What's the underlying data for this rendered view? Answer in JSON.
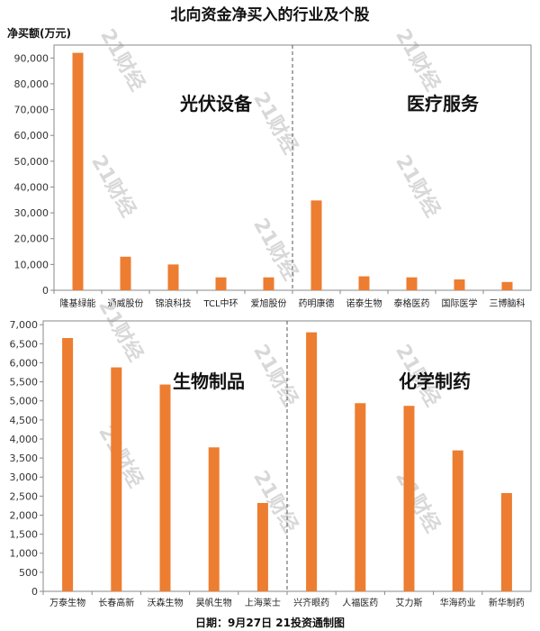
{
  "header": {
    "title": "北向资金净买入的行业及个股",
    "ylabel": "净买额(万元)"
  },
  "footer": {
    "text": "日期：9月27日  21投资通制图"
  },
  "watermark": "21财经",
  "colors": {
    "bar": "#ED7D31",
    "axis": "#888888",
    "divider": "#555555"
  },
  "chart_data": [
    {
      "type": "bar",
      "ylim": [
        0,
        95000
      ],
      "yticks": [
        0,
        10000,
        20000,
        30000,
        40000,
        50000,
        60000,
        70000,
        80000,
        90000
      ],
      "ytick_labels": [
        "0",
        "10,000",
        "20,000",
        "30,000",
        "40,000",
        "50,000",
        "60,000",
        "70,000",
        "80,000",
        "90,000"
      ],
      "groups": [
        {
          "label": "光伏设备",
          "categories": [
            "隆基绿能",
            "通威股份",
            "锦浪科技",
            "TCL中环",
            "爱旭股份"
          ],
          "values": [
            92000,
            13000,
            10000,
            5000,
            5000
          ]
        },
        {
          "label": "医疗服务",
          "categories": [
            "药明康德",
            "诺泰生物",
            "泰格医药",
            "国际医学",
            "三博脑科"
          ],
          "values": [
            34800,
            5400,
            5000,
            4200,
            3200
          ]
        }
      ]
    },
    {
      "type": "bar",
      "ylim": [
        0,
        7100
      ],
      "yticks": [
        0,
        500,
        1000,
        1500,
        2000,
        2500,
        3000,
        3500,
        4000,
        4500,
        5000,
        5500,
        6000,
        6500,
        7000
      ],
      "ytick_labels": [
        "0",
        "500",
        "1,000",
        "1,500",
        "2,000",
        "2,500",
        "3,000",
        "3,500",
        "4,000",
        "4,500",
        "5,000",
        "5,500",
        "6,000",
        "6,500",
        "7,000"
      ],
      "groups": [
        {
          "label": "生物制品",
          "categories": [
            "万泰生物",
            "长春高新",
            "沃森生物",
            "昊帆生物",
            "上海莱士"
          ],
          "values": [
            6650,
            5880,
            5430,
            3780,
            2320
          ]
        },
        {
          "label": "化学制药",
          "categories": [
            "兴齐眼药",
            "人福医药",
            "艾力斯",
            "华海药业",
            "新华制药"
          ],
          "values": [
            6800,
            4940,
            4870,
            3700,
            2580
          ]
        }
      ]
    }
  ]
}
